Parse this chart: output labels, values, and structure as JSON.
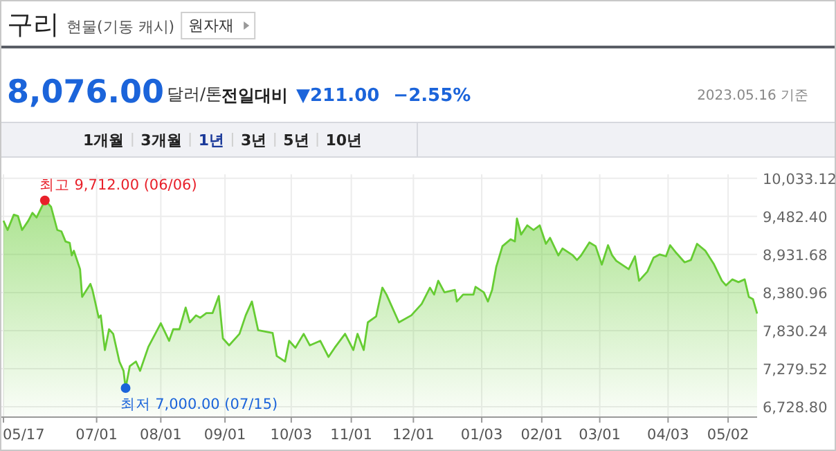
{
  "chart_data": {
    "type": "area",
    "title": "구리",
    "subtitle": "현물(기동 캐시)",
    "annotations": [
      "원자재",
      "8,076.00",
      "달러/톤",
      "전일대비",
      "▼211.00",
      "−2.55%",
      "2023.05.16 기준",
      "1개월",
      "3개월",
      "1년",
      "3년",
      "5년",
      "10년",
      {
        "text": "최고 9,712.00 (06/06)",
        "x": "2022-06-06",
        "y": 9712
      },
      {
        "text": "최저 7,000.00 (07/15)",
        "x": "2022-07-15",
        "y": 7000
      }
    ],
    "x": [
      "2022-05-17",
      "2022-05-19",
      "2022-05-22",
      "2022-05-24",
      "2022-05-26",
      "2022-05-29",
      "2022-05-31",
      "2022-06-02",
      "2022-06-06",
      "2022-06-07",
      "2022-06-09",
      "2022-06-12",
      "2022-06-14",
      "2022-06-16",
      "2022-06-18",
      "2022-06-19",
      "2022-06-20",
      "2022-06-23",
      "2022-06-24",
      "2022-06-28",
      "2022-06-29",
      "2022-07-02",
      "2022-07-03",
      "2022-07-05",
      "2022-07-07",
      "2022-07-09",
      "2022-07-12",
      "2022-07-14",
      "2022-07-15",
      "2022-07-17",
      "2022-07-20",
      "2022-07-22",
      "2022-07-26",
      "2022-08-01",
      "2022-08-05",
      "2022-08-07",
      "2022-08-10",
      "2022-08-13",
      "2022-08-15",
      "2022-08-18",
      "2022-08-20",
      "2022-08-23",
      "2022-08-26",
      "2022-08-29",
      "2022-08-31",
      "2022-09-03",
      "2022-09-08",
      "2022-09-11",
      "2022-09-14",
      "2022-09-17",
      "2022-09-24",
      "2022-09-26",
      "2022-09-30",
      "2022-10-02",
      "2022-10-05",
      "2022-10-09",
      "2022-10-12",
      "2022-10-17",
      "2022-10-21",
      "2022-10-24",
      "2022-10-29",
      "2022-11-02",
      "2022-11-04",
      "2022-11-07",
      "2022-11-09",
      "2022-11-13",
      "2022-11-16",
      "2022-11-18",
      "2022-11-24",
      "2022-11-30",
      "2022-12-05",
      "2022-12-09",
      "2022-12-11",
      "2022-12-13",
      "2022-12-16",
      "2022-12-21",
      "2022-12-22",
      "2022-12-25",
      "2022-12-30",
      "2022-12-31",
      "2023-01-04",
      "2023-01-06",
      "2023-01-08",
      "2023-01-10",
      "2023-01-13",
      "2023-01-17",
      "2023-01-19",
      "2023-01-20",
      "2023-01-22",
      "2023-01-25",
      "2023-01-28",
      "2023-01-31",
      "2023-02-03",
      "2023-02-05",
      "2023-02-09",
      "2023-02-11",
      "2023-02-16",
      "2023-02-18",
      "2023-02-20",
      "2023-02-24",
      "2023-02-27",
      "2023-03-02",
      "2023-03-05",
      "2023-03-07",
      "2023-03-09",
      "2023-03-15",
      "2023-03-18",
      "2023-03-20",
      "2023-03-24",
      "2023-03-27",
      "2023-03-30",
      "2023-04-02",
      "2023-04-04",
      "2023-04-07",
      "2023-04-11",
      "2023-04-14",
      "2023-04-17",
      "2023-04-21",
      "2023-04-25",
      "2023-04-29",
      "2023-05-01",
      "2023-05-04",
      "2023-05-07",
      "2023-05-10",
      "2023-05-12",
      "2023-05-14",
      "2023-05-16"
    ],
    "series": [
      {
        "color": "#66cc33",
        "values": [
          9419,
          9285,
          9506,
          9486,
          9285,
          9419,
          9533,
          9466,
          9712,
          9686,
          9620,
          9285,
          9265,
          9119,
          9099,
          8918,
          8985,
          8719,
          8318,
          8505,
          8418,
          8017,
          8051,
          7550,
          7850,
          7784,
          7383,
          7249,
          7000,
          7316,
          7383,
          7249,
          7596,
          7937,
          7683,
          7850,
          7850,
          8163,
          7950,
          8051,
          8017,
          8084,
          8084,
          8331,
          7717,
          7617,
          7784,
          8051,
          8251,
          7837,
          7797,
          7463,
          7383,
          7683,
          7583,
          7784,
          7617,
          7683,
          7450,
          7583,
          7784,
          7550,
          7784,
          7550,
          7950,
          8037,
          8452,
          8351,
          7950,
          8051,
          8216,
          8451,
          8351,
          8551,
          8384,
          8418,
          8251,
          8351,
          8351,
          8464,
          8384,
          8251,
          8418,
          8751,
          9051,
          9151,
          9119,
          9452,
          9219,
          9352,
          9285,
          9352,
          9085,
          9172,
          8918,
          9018,
          8918,
          8851,
          8918,
          9105,
          9051,
          8785,
          9065,
          8918,
          8838,
          8718,
          8905,
          8551,
          8684,
          8885,
          8932,
          8905,
          9065,
          8952,
          8818,
          8851,
          9085,
          8985,
          8798,
          8551,
          8484,
          8571,
          8531,
          8571,
          8318,
          8285,
          8076
        ]
      }
    ],
    "xlim": [
      "2022-05-16",
      "2023-05-16"
    ],
    "xticks": [
      {
        "value": "2022-05-17",
        "label": "05/17"
      },
      {
        "value": "2022-07-01",
        "label": "07/01"
      },
      {
        "value": "2022-08-01",
        "label": "08/01"
      },
      {
        "value": "2022-09-01",
        "label": "09/01"
      },
      {
        "value": "2022-10-03",
        "label": "10/03"
      },
      {
        "value": "2022-11-01",
        "label": "11/01"
      },
      {
        "value": "2022-12-01",
        "label": "12/01"
      },
      {
        "value": "2023-01-03",
        "label": "01/03"
      },
      {
        "value": "2023-02-01",
        "label": "02/01"
      },
      {
        "value": "2023-03-01",
        "label": "03/01"
      },
      {
        "value": "2023-04-03",
        "label": "04/03"
      },
      {
        "value": "2023-05-02",
        "label": "05/02"
      }
    ],
    "ylim": [
      6580,
      10090
    ],
    "yticks": [
      {
        "value": 6728.8,
        "label": "6,728.80"
      },
      {
        "value": 7279.52,
        "label": "7,279.52"
      },
      {
        "value": 7830.24,
        "label": "7,830.24"
      },
      {
        "value": 8380.96,
        "label": "8,380.96"
      },
      {
        "value": 8931.68,
        "label": "8,931.68"
      },
      {
        "value": 9482.4,
        "label": "9,482.40"
      },
      {
        "value": 10033.12,
        "label": "10,033.12"
      }
    ],
    "grid": true,
    "marker": "none",
    "line_style": "solid"
  }
}
